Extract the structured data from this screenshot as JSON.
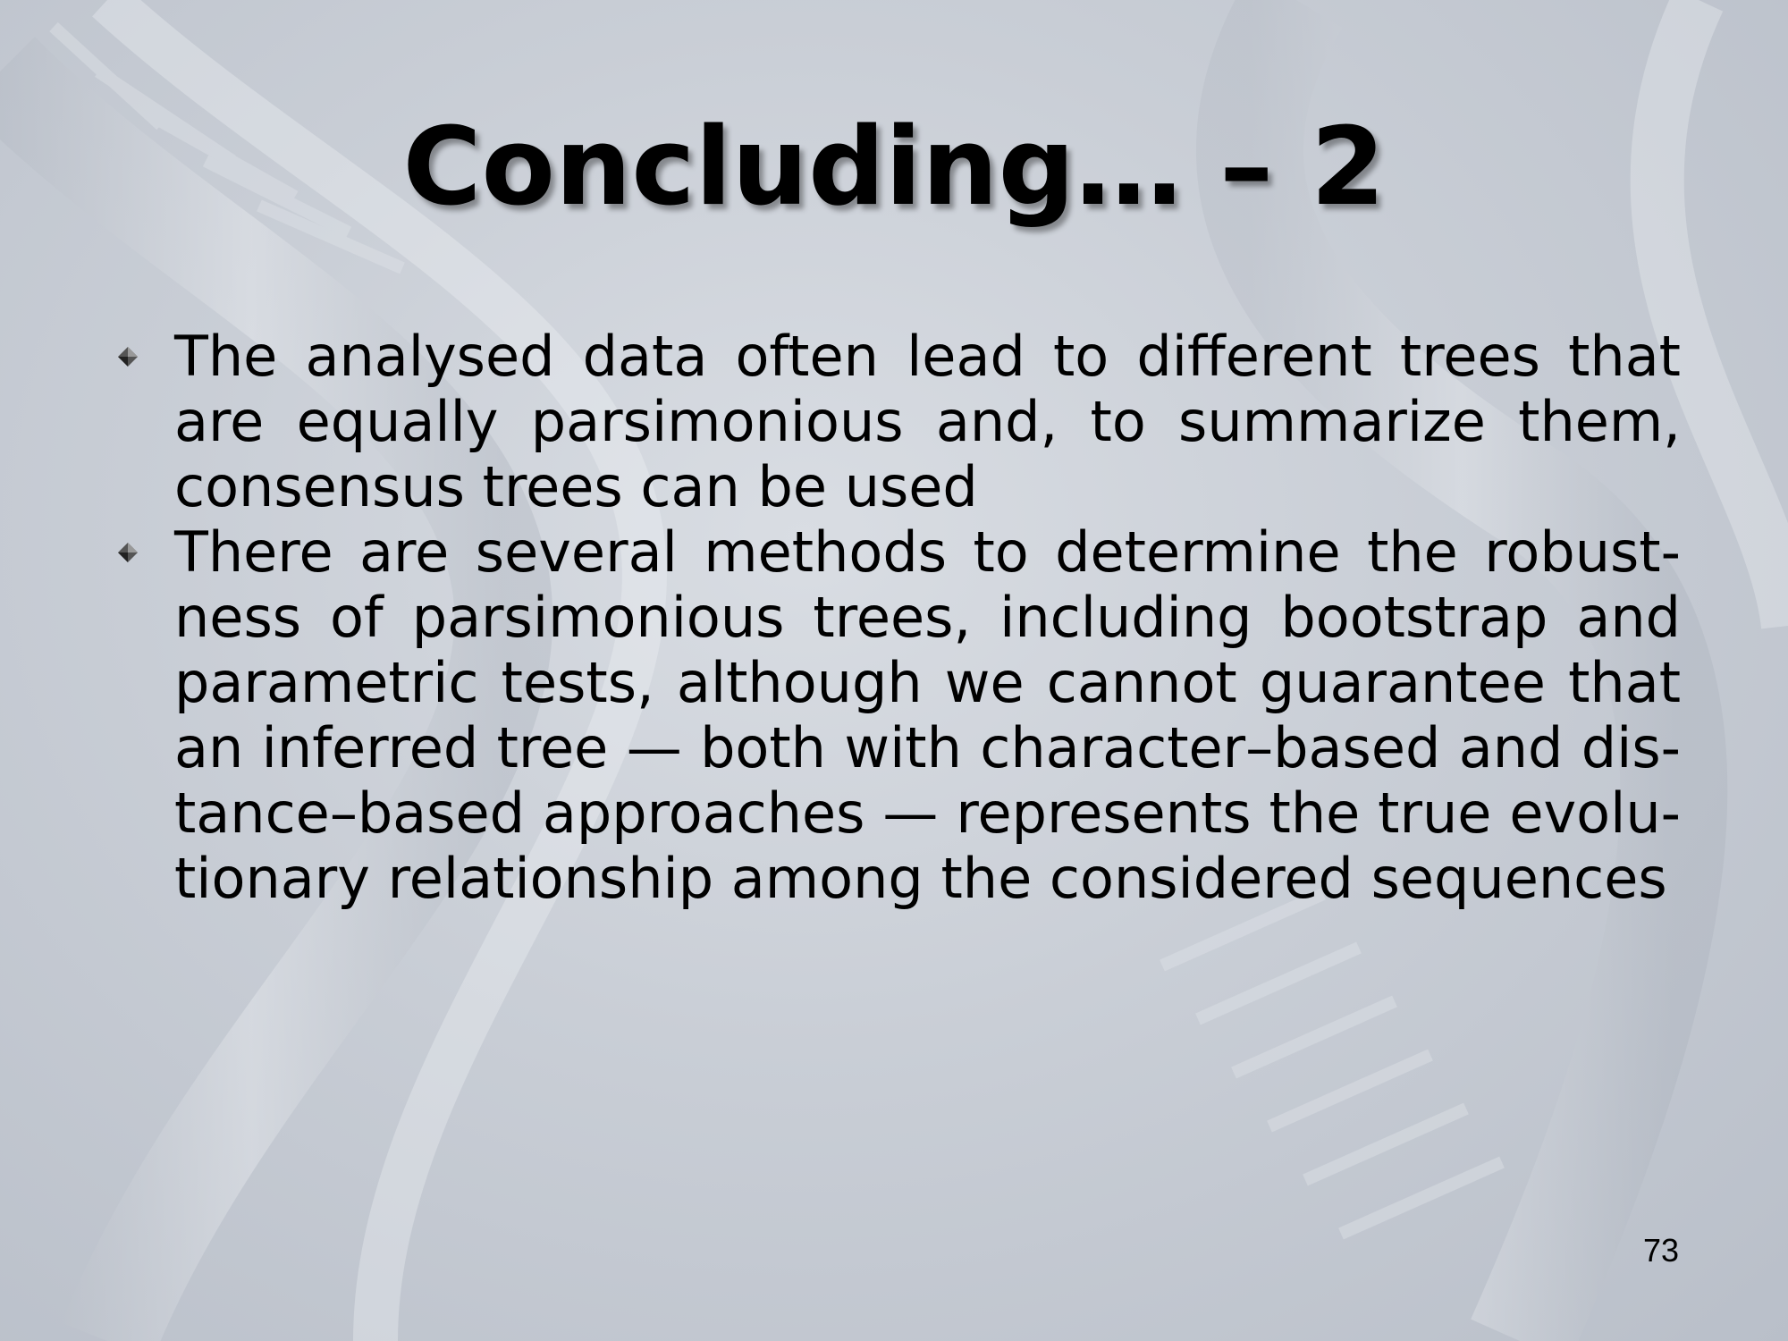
{
  "slide": {
    "title": "Concluding… – 2",
    "bullets": [
      "The analysed data often lead to different trees that are equally parsimonious and, to summarize them, consensus trees can be used",
      "There are several methods to determine the robust-ness of parsimonious trees, including bootstrap and parametric tests, although we cannot guarantee that an inferred tree — both with character–based and dis-tance–based approaches — represents the true evolu-tionary relationship among the considered sequences"
    ],
    "page_number": "73"
  },
  "icons": {
    "bullet": "diamond-bullet-icon",
    "background": "dna-helix"
  },
  "colors": {
    "background": "#c9ced6",
    "text": "#000000"
  }
}
